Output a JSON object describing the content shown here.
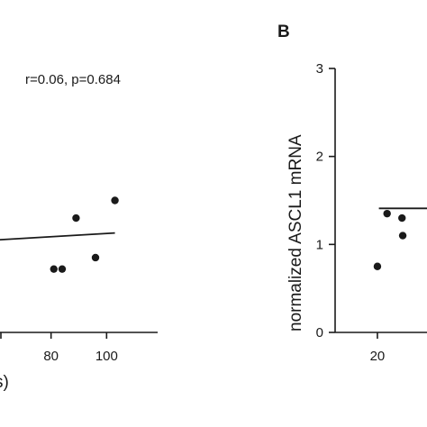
{
  "chart_data": [
    {
      "type": "scatter",
      "panel": "",
      "annotation": "r=0.06, p=0.684",
      "xlabel": "s)",
      "ylabel": "",
      "x_ticks": [
        "80",
        "100"
      ],
      "x_tick_values": [
        80,
        100
      ],
      "xlim": [
        60,
        108
      ],
      "ylim": [
        0,
        3
      ],
      "points": [
        {
          "x": 81,
          "y": 0.72
        },
        {
          "x": 84,
          "y": 0.72
        },
        {
          "x": 89,
          "y": 1.3
        },
        {
          "x": 96,
          "y": 0.85
        },
        {
          "x": 103,
          "y": 1.5
        }
      ],
      "fit_line": {
        "x": [
          60,
          103
        ],
        "y": [
          1.05,
          1.13
        ]
      }
    },
    {
      "type": "scatter",
      "panel": "B",
      "annotation": "",
      "xlabel": "",
      "ylabel": "normalized ASCL1 mRNA",
      "x_ticks": [
        "20"
      ],
      "x_tick_values": [
        20
      ],
      "y_ticks": [
        "0",
        "1",
        "2",
        "3"
      ],
      "y_tick_values": [
        0,
        1,
        2,
        3
      ],
      "xlim": [
        16.5,
        35
      ],
      "ylim": [
        0,
        3
      ],
      "points": [
        {
          "x": 20,
          "y": 0.75
        },
        {
          "x": 21.3,
          "y": 1.35
        },
        {
          "x": 23.3,
          "y": 1.3
        },
        {
          "x": 23.4,
          "y": 1.1
        }
      ],
      "fit_line": {
        "x": [
          20.2,
          35
        ],
        "y": [
          1.41,
          1.41
        ]
      }
    }
  ]
}
